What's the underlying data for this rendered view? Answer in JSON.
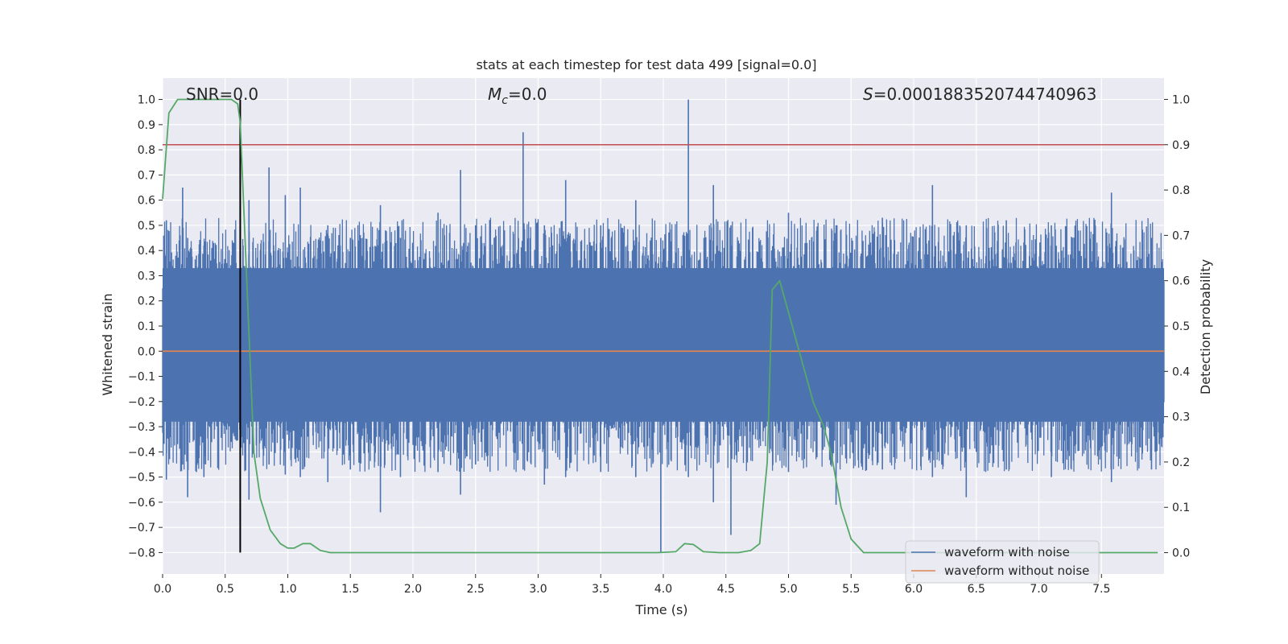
{
  "chart_data": {
    "type": "line",
    "title": "stats at each timestep for test data 499 [signal=0.0]",
    "xlabel": "Time (s)",
    "ylabel_left": "Whitened strain",
    "ylabel_right": "Detection probability",
    "xlim": [
      0.0,
      8.0
    ],
    "ylim_left": [
      -0.885,
      1.085
    ],
    "ylim_right": [
      -0.047,
      1.047
    ],
    "x_ticks": [
      "0.0",
      "0.5",
      "1.0",
      "1.5",
      "2.0",
      "2.5",
      "3.0",
      "3.5",
      "4.0",
      "4.5",
      "5.0",
      "5.5",
      "6.0",
      "6.5",
      "7.0",
      "7.5"
    ],
    "y_left_ticks": [
      "1.0",
      "0.9",
      "0.8",
      "0.7",
      "0.6",
      "0.5",
      "0.4",
      "0.3",
      "0.2",
      "0.1",
      "0.0",
      "−0.1",
      "−0.2",
      "−0.3",
      "−0.4",
      "−0.5",
      "−0.6",
      "−0.7",
      "−0.8"
    ],
    "y_right_ticks": [
      "1.0",
      "0.9",
      "0.8",
      "0.7",
      "0.6",
      "0.5",
      "0.4",
      "0.3",
      "0.2",
      "0.1",
      "0.0"
    ],
    "grid": true,
    "legend_position": "lower-right",
    "annotations": {
      "snr": "SNR=0.0",
      "mc_symbol": "M",
      "mc_subscript": "c",
      "mc_value": "=0.0",
      "s_symbol": "S",
      "s_value": "=0.0001883520744740963"
    },
    "colors": {
      "background": "#eaeaf2",
      "grid": "#ffffff",
      "noisy": "#4c72b0",
      "clean": "#dd8452",
      "probability": "#55a868",
      "threshold": "#c44e52",
      "marker": "#000000"
    },
    "series": [
      {
        "name": "waveform with noise",
        "axis": "left",
        "baseline_range": [
          -0.28,
          0.33
        ],
        "spikes": [
          {
            "x": 0.03,
            "high": 0.52,
            "low": -0.51
          },
          {
            "x": 0.16,
            "high": 0.65,
            "low": -0.45
          },
          {
            "x": 0.2,
            "high": 0.45,
            "low": -0.58
          },
          {
            "x": 0.27,
            "high": 0.38,
            "low": -0.48
          },
          {
            "x": 0.33,
            "high": 0.42,
            "low": -0.5
          },
          {
            "x": 0.62,
            "high": 0.92,
            "low": -0.42
          },
          {
            "x": 0.69,
            "high": 0.6,
            "low": -0.59
          },
          {
            "x": 0.85,
            "high": 0.73,
            "low": -0.45
          },
          {
            "x": 0.98,
            "high": 0.62,
            "low": -0.49
          },
          {
            "x": 1.1,
            "high": 0.65,
            "low": -0.5
          },
          {
            "x": 1.32,
            "high": 0.5,
            "low": -0.52
          },
          {
            "x": 1.5,
            "high": 0.45,
            "low": -0.47
          },
          {
            "x": 1.74,
            "high": 0.58,
            "low": -0.64
          },
          {
            "x": 1.9,
            "high": 0.45,
            "low": -0.5
          },
          {
            "x": 2.2,
            "high": 0.55,
            "low": -0.48
          },
          {
            "x": 2.38,
            "high": 0.72,
            "low": -0.57
          },
          {
            "x": 2.5,
            "high": 0.5,
            "low": -0.45
          },
          {
            "x": 2.88,
            "high": 0.87,
            "low": -0.47
          },
          {
            "x": 3.05,
            "high": 0.5,
            "low": -0.53
          },
          {
            "x": 3.22,
            "high": 0.68,
            "low": -0.5
          },
          {
            "x": 3.5,
            "high": 0.5,
            "low": -0.48
          },
          {
            "x": 3.78,
            "high": 0.6,
            "low": -0.5
          },
          {
            "x": 3.98,
            "high": 0.45,
            "low": -0.8
          },
          {
            "x": 4.2,
            "high": 1.0,
            "low": -0.5
          },
          {
            "x": 4.4,
            "high": 0.66,
            "low": -0.6
          },
          {
            "x": 4.54,
            "high": 0.5,
            "low": -0.73
          },
          {
            "x": 5.0,
            "high": 0.55,
            "low": -0.48
          },
          {
            "x": 5.38,
            "high": 0.5,
            "low": -0.61
          },
          {
            "x": 5.75,
            "high": 0.53,
            "low": -0.47
          },
          {
            "x": 6.15,
            "high": 0.66,
            "low": -0.5
          },
          {
            "x": 6.42,
            "high": 0.5,
            "low": -0.58
          },
          {
            "x": 6.74,
            "high": 0.52,
            "low": -0.47
          },
          {
            "x": 7.1,
            "high": 0.5,
            "low": -0.5
          },
          {
            "x": 7.58,
            "high": 0.63,
            "low": -0.52
          },
          {
            "x": 7.9,
            "high": 0.45,
            "low": -0.47
          }
        ]
      },
      {
        "name": "waveform without noise",
        "axis": "left",
        "x": [
          0.0,
          8.0
        ],
        "y": [
          0.0,
          0.0
        ]
      },
      {
        "axis": "right",
        "x": [
          0.0,
          0.05,
          0.12,
          0.25,
          0.4,
          0.55,
          0.6,
          0.62,
          0.68,
          0.73,
          0.78,
          0.86,
          0.94,
          1.0,
          1.05,
          1.12,
          1.18,
          1.26,
          1.34,
          1.5,
          2.0,
          2.5,
          3.0,
          3.5,
          3.95,
          4.1,
          4.17,
          4.24,
          4.32,
          4.45,
          4.6,
          4.7,
          4.77,
          4.83,
          4.87,
          4.93,
          5.0,
          5.1,
          5.2,
          5.28,
          5.34,
          5.42,
          5.5,
          5.6,
          6.0,
          6.5,
          7.0,
          7.5,
          7.95
        ],
        "y": [
          0.78,
          0.97,
          1.0,
          1.0,
          1.0,
          1.0,
          0.99,
          0.95,
          0.55,
          0.22,
          0.12,
          0.05,
          0.02,
          0.01,
          0.01,
          0.02,
          0.02,
          0.005,
          0.0,
          0.0,
          0.0,
          0.0,
          0.0,
          0.0,
          0.0,
          0.002,
          0.02,
          0.018,
          0.002,
          0.0,
          0.0,
          0.005,
          0.02,
          0.2,
          0.58,
          0.6,
          0.53,
          0.43,
          0.33,
          0.28,
          0.22,
          0.1,
          0.03,
          0.0,
          0.0,
          0.0,
          0.0,
          0.0,
          0.0
        ]
      }
    ],
    "threshold_right": 0.9,
    "marker_x": 0.62,
    "marker_range_left": [
      -0.8,
      1.0
    ]
  }
}
